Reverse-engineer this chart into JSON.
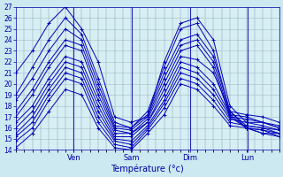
{
  "title": "Température (°c)",
  "bg_color": "#cce8f0",
  "plot_bg_color": "#d8eef5",
  "line_color": "#0000bb",
  "grid_color": "#a0bec8",
  "tick_color": "#0000aa",
  "ylim": [
    14,
    27
  ],
  "yticks": [
    14,
    15,
    16,
    17,
    18,
    19,
    20,
    21,
    22,
    23,
    24,
    25,
    26,
    27
  ],
  "day_labels": [
    "Ven",
    "Sam",
    "Dim",
    "Lun"
  ],
  "day_positions": [
    0.22,
    0.44,
    0.66,
    0.88
  ],
  "num_time_steps": 17,
  "series": [
    [
      21.0,
      23.0,
      25.5,
      27.0,
      25.0,
      22.0,
      17.0,
      16.5,
      17.0,
      22.0,
      25.5,
      26.0,
      24.0,
      18.0,
      16.5,
      16.5,
      16.0
    ],
    [
      19.0,
      21.5,
      24.0,
      26.0,
      24.5,
      20.5,
      16.5,
      16.0,
      17.5,
      21.5,
      25.0,
      25.5,
      23.0,
      17.5,
      16.2,
      16.0,
      15.8
    ],
    [
      18.5,
      20.5,
      23.0,
      25.0,
      24.0,
      20.0,
      16.2,
      16.0,
      17.2,
      21.0,
      24.0,
      24.5,
      22.5,
      17.5,
      16.0,
      15.8,
      15.5
    ],
    [
      17.5,
      19.5,
      22.0,
      24.0,
      23.5,
      19.5,
      16.0,
      15.8,
      17.0,
      20.5,
      23.5,
      24.0,
      22.0,
      17.2,
      16.0,
      15.5,
      15.5
    ],
    [
      17.0,
      19.0,
      21.5,
      23.5,
      23.0,
      19.0,
      15.8,
      15.5,
      16.8,
      20.0,
      23.0,
      23.5,
      21.5,
      17.0,
      16.0,
      15.5,
      15.2
    ],
    [
      16.5,
      18.0,
      20.5,
      22.5,
      22.0,
      18.5,
      15.5,
      15.5,
      16.5,
      19.5,
      22.5,
      22.2,
      21.0,
      17.5,
      17.2,
      17.0,
      16.5
    ],
    [
      16.0,
      17.5,
      20.0,
      22.0,
      21.5,
      18.0,
      15.2,
      15.2,
      16.5,
      19.0,
      22.0,
      21.5,
      20.0,
      17.2,
      17.0,
      16.5,
      16.2
    ],
    [
      15.5,
      17.0,
      19.5,
      21.5,
      21.0,
      17.5,
      15.0,
      14.8,
      16.2,
      18.5,
      21.5,
      21.0,
      19.5,
      17.0,
      16.8,
      16.5,
      16.0
    ],
    [
      15.2,
      16.5,
      19.0,
      21.0,
      20.5,
      17.0,
      14.8,
      14.5,
      16.0,
      18.2,
      21.0,
      20.5,
      19.0,
      16.8,
      16.5,
      16.2,
      15.8
    ],
    [
      14.8,
      16.0,
      18.5,
      20.5,
      20.0,
      16.5,
      14.5,
      14.2,
      15.8,
      17.8,
      20.5,
      20.0,
      18.5,
      16.5,
      16.2,
      16.0,
      15.5
    ],
    [
      14.2,
      15.5,
      17.5,
      19.5,
      19.0,
      16.0,
      14.2,
      14.0,
      15.5,
      17.2,
      20.0,
      19.5,
      18.0,
      16.2,
      16.0,
      15.8,
      15.2
    ]
  ]
}
